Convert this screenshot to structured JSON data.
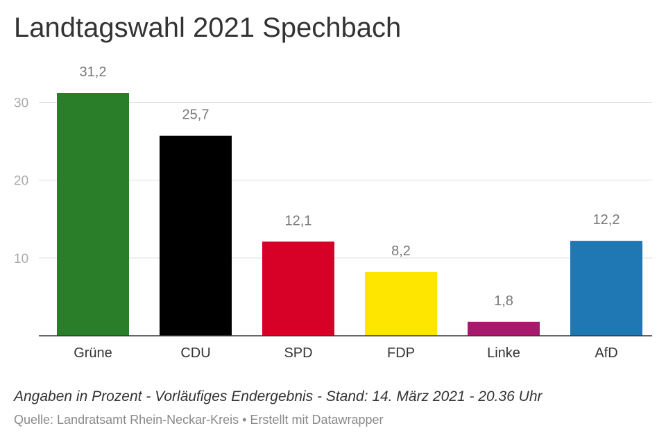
{
  "header": {
    "title": "Landtagswahl 2021 Spechbach"
  },
  "footer": {
    "notes": "Angaben in Prozent - Vorläufiges Endergebnis - Stand: 14. März 2021 - 20.36 Uhr",
    "source": "Quelle: Landratsamt Rhein-Neckar-Kreis • Erstellt mit Datawrapper"
  },
  "chart_data": {
    "type": "bar",
    "title": "Landtagswahl 2021 Spechbach",
    "xlabel": "",
    "ylabel": "",
    "categories": [
      "Grüne",
      "CDU",
      "SPD",
      "FDP",
      "Linke",
      "AfD"
    ],
    "values": [
      31.2,
      25.7,
      12.1,
      8.2,
      1.8,
      12.2
    ],
    "value_labels": [
      "31,2",
      "25,7",
      "12,1",
      "8,2",
      "1,8",
      "12,2"
    ],
    "colors": [
      "#2a7d29",
      "#000000",
      "#d70026",
      "#ffe600",
      "#a8196e",
      "#1f77b4"
    ],
    "ylim": [
      0,
      31.2
    ],
    "yticks": [
      10,
      20,
      30
    ],
    "ytick_labels": [
      "10",
      "20",
      "30"
    ],
    "grid": true,
    "legend": "none"
  }
}
